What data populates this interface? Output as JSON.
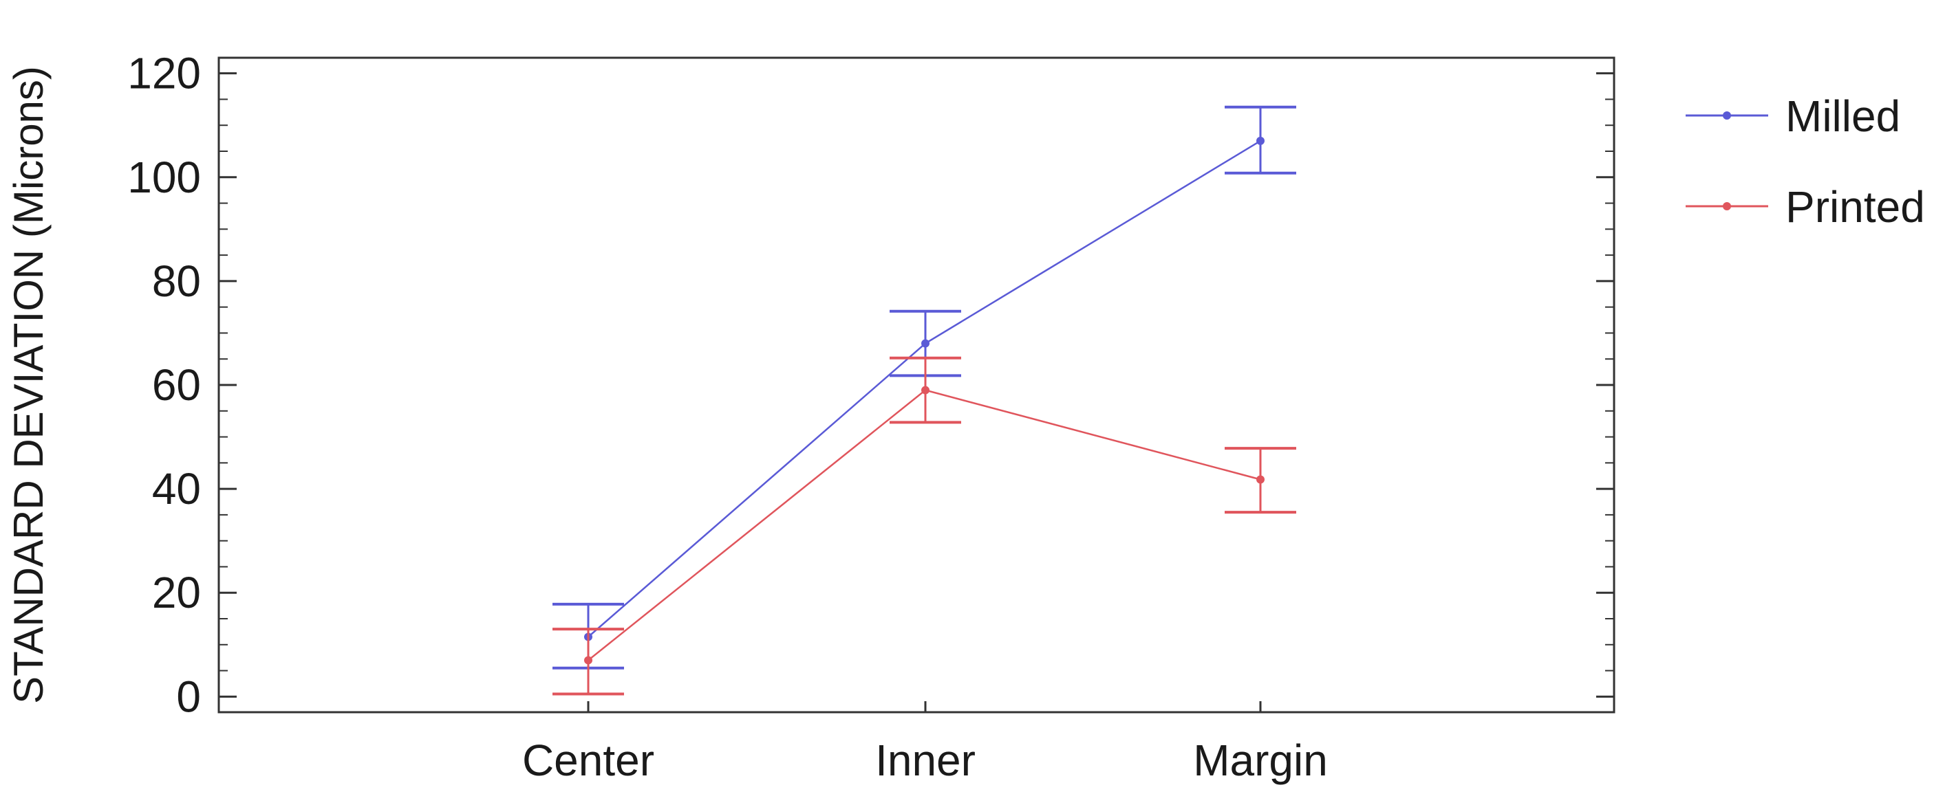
{
  "chart_data": {
    "type": "line",
    "title": "",
    "xlabel": "",
    "ylabel": "STANDARD DEVIATION (Microns)",
    "categories": [
      "Center",
      "Inner",
      "Margin"
    ],
    "ylim": [
      -3,
      123
    ],
    "yticks": [
      0,
      20,
      40,
      60,
      80,
      100,
      120
    ],
    "grid": false,
    "legend_position": "right",
    "error_bars": true,
    "series": [
      {
        "name": "Milled",
        "color": "#5a5ad6",
        "values": [
          11.5,
          68,
          107
        ],
        "error_low": [
          5.5,
          61.8,
          100.8
        ],
        "error_high": [
          17.8,
          74.2,
          113.5
        ]
      },
      {
        "name": "Printed",
        "color": "#e0555c",
        "values": [
          7,
          59,
          41.8
        ],
        "error_low": [
          0.5,
          52.8,
          35.5
        ],
        "error_high": [
          13,
          65.2,
          47.8
        ]
      }
    ]
  }
}
